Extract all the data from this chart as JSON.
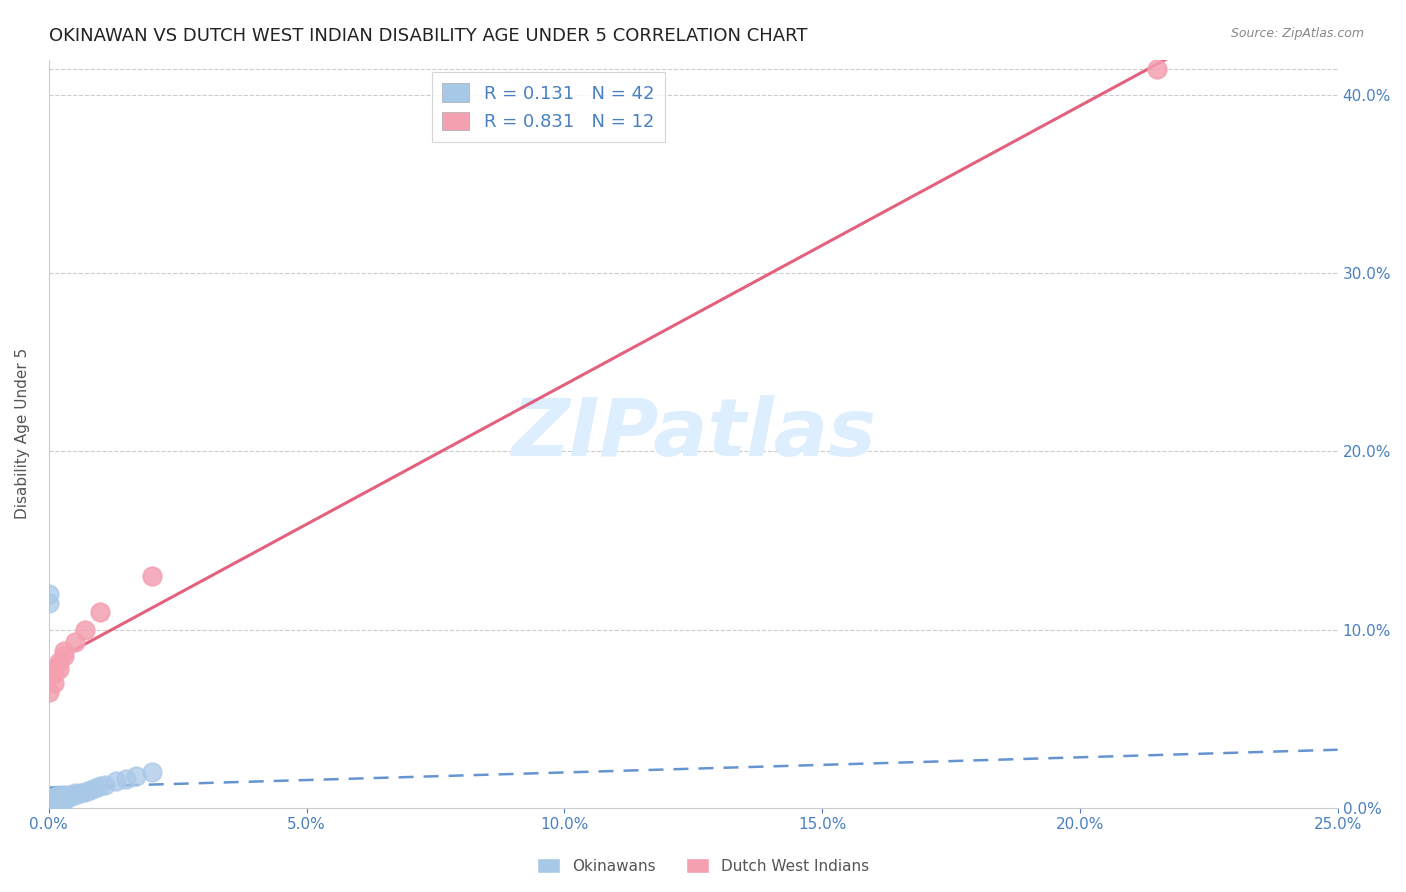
{
  "title": "OKINAWAN VS DUTCH WEST INDIAN DISABILITY AGE UNDER 5 CORRELATION CHART",
  "source": "Source: ZipAtlas.com",
  "ylabel": "Disability Age Under 5",
  "xlim": [
    0.0,
    0.25
  ],
  "ylim": [
    0.0,
    0.42
  ],
  "xtick_vals": [
    0.0,
    0.05,
    0.1,
    0.15,
    0.2,
    0.25
  ],
  "ytick_vals": [
    0.0,
    0.1,
    0.2,
    0.3,
    0.4
  ],
  "okinawan_color": "#a8c8e8",
  "dutch_color": "#f4a0b0",
  "trendline_okinawan_color": "#5588cc",
  "trendline_dutch_color": "#e05070",
  "R_okinawan": 0.131,
  "N_okinawan": 42,
  "R_dutch": 0.831,
  "N_dutch": 12,
  "okinawan_x": [
    0.0,
    0.0,
    0.0,
    0.0,
    0.0,
    0.0,
    0.0,
    0.0,
    0.0,
    0.0,
    0.0,
    0.0,
    0.001,
    0.001,
    0.001,
    0.001,
    0.001,
    0.002,
    0.002,
    0.002,
    0.002,
    0.002,
    0.003,
    0.003,
    0.003,
    0.003,
    0.004,
    0.004,
    0.005,
    0.005,
    0.006,
    0.007,
    0.008,
    0.009,
    0.01,
    0.011,
    0.013,
    0.015,
    0.017,
    0.02,
    0.0,
    0.0
  ],
  "okinawan_y": [
    0.0,
    0.0,
    0.0,
    0.001,
    0.001,
    0.002,
    0.002,
    0.003,
    0.003,
    0.004,
    0.004,
    0.005,
    0.002,
    0.003,
    0.004,
    0.005,
    0.006,
    0.003,
    0.004,
    0.005,
    0.006,
    0.007,
    0.004,
    0.005,
    0.006,
    0.007,
    0.006,
    0.007,
    0.007,
    0.008,
    0.008,
    0.009,
    0.01,
    0.011,
    0.012,
    0.013,
    0.015,
    0.016,
    0.018,
    0.02,
    0.115,
    0.12
  ],
  "dutch_x": [
    0.0,
    0.001,
    0.001,
    0.002,
    0.002,
    0.003,
    0.003,
    0.005,
    0.007,
    0.01,
    0.02,
    0.215
  ],
  "dutch_y": [
    0.065,
    0.07,
    0.075,
    0.078,
    0.082,
    0.085,
    0.088,
    0.093,
    0.1,
    0.11,
    0.13,
    0.415
  ],
  "background_color": "#ffffff",
  "watermark_text": "ZIPatlas",
  "watermark_color": "#ddeeff",
  "title_fontsize": 13,
  "axis_label_fontsize": 11,
  "tick_fontsize": 11,
  "legend_fontsize": 13
}
